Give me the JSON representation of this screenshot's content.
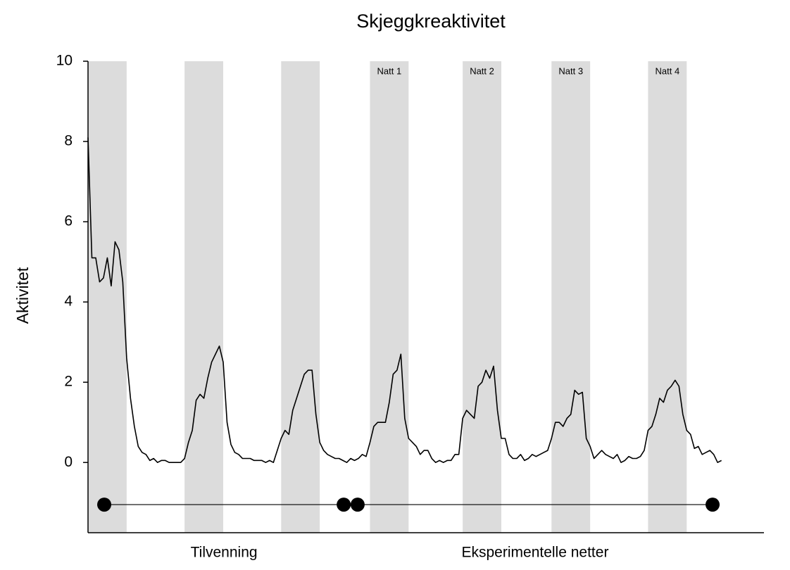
{
  "chart_data": {
    "type": "line",
    "title": "Skjeggkreaktivitet",
    "y_label": "Aktivitet",
    "color": "#000000",
    "band_color": "#dcdcdc",
    "xlim": [
      0,
      175
    ],
    "ylim": [
      -1.75,
      10
    ],
    "yticks": [
      0,
      2,
      4,
      6,
      8,
      10
    ],
    "x": [
      0,
      1,
      2,
      3,
      4,
      5,
      6,
      7,
      8,
      9,
      10,
      11,
      12,
      13,
      14,
      15,
      16,
      17,
      18,
      19,
      20,
      21,
      22,
      23,
      24,
      25,
      26,
      27,
      28,
      29,
      30,
      31,
      32,
      33,
      34,
      35,
      36,
      37,
      38,
      39,
      40,
      41,
      42,
      43,
      44,
      45,
      46,
      47,
      48,
      49,
      50,
      51,
      52,
      53,
      54,
      55,
      56,
      57,
      58,
      59,
      60,
      61,
      62,
      63,
      64,
      65,
      66,
      67,
      68,
      69,
      70,
      71,
      72,
      73,
      74,
      75,
      76,
      77,
      78,
      79,
      80,
      81,
      82,
      83,
      84,
      85,
      86,
      87,
      88,
      89,
      90,
      91,
      92,
      93,
      94,
      95,
      96,
      97,
      98,
      99,
      100,
      101,
      102,
      103,
      104,
      105,
      106,
      107,
      108,
      109,
      110,
      111,
      112,
      113,
      114,
      115,
      116,
      117,
      118,
      119,
      120,
      121,
      122,
      123,
      124,
      125,
      126,
      127,
      128,
      129,
      130,
      131,
      132,
      133,
      134,
      135,
      136,
      137,
      138,
      139,
      140,
      141,
      142,
      143,
      144,
      145,
      146,
      147,
      148,
      149,
      150,
      151,
      152,
      153,
      154,
      155,
      156,
      157,
      158,
      159,
      160,
      161,
      162,
      163,
      164
    ],
    "values": [
      8.1,
      5.1,
      5.1,
      4.5,
      4.6,
      5.1,
      4.4,
      5.5,
      5.3,
      4.5,
      2.6,
      1.6,
      0.9,
      0.4,
      0.25,
      0.2,
      0.05,
      0.1,
      0,
      0.05,
      0.05,
      0,
      0,
      0,
      0,
      0.1,
      0.5,
      0.8,
      1.55,
      1.7,
      1.6,
      2.1,
      2.5,
      2.7,
      2.9,
      2.5,
      1.0,
      0.45,
      0.25,
      0.2,
      0.1,
      0.1,
      0.1,
      0.05,
      0.05,
      0.05,
      0,
      0.05,
      0,
      0.3,
      0.6,
      0.8,
      0.7,
      1.3,
      1.6,
      1.9,
      2.2,
      2.3,
      2.3,
      1.2,
      0.5,
      0.3,
      0.2,
      0.15,
      0.1,
      0.1,
      0.05,
      0,
      0.1,
      0.05,
      0.1,
      0.2,
      0.15,
      0.5,
      0.9,
      1.0,
      1.0,
      1.0,
      1.5,
      2.2,
      2.3,
      2.7,
      1.1,
      0.6,
      0.5,
      0.4,
      0.2,
      0.3,
      0.3,
      0.1,
      0,
      0.05,
      0,
      0.05,
      0.05,
      0.2,
      0.2,
      1.1,
      1.3,
      1.2,
      1.1,
      1.9,
      2.0,
      2.3,
      2.1,
      2.4,
      1.3,
      0.6,
      0.6,
      0.2,
      0.1,
      0.1,
      0.2,
      0.05,
      0.1,
      0.2,
      0.15,
      0.2,
      0.25,
      0.3,
      0.6,
      1.0,
      1.0,
      0.9,
      1.1,
      1.2,
      1.8,
      1.7,
      1.75,
      0.6,
      0.4,
      0.1,
      0.2,
      0.3,
      0.2,
      0.15,
      0.1,
      0.2,
      0,
      0.05,
      0.15,
      0.1,
      0.1,
      0.15,
      0.3,
      0.8,
      0.9,
      1.2,
      1.6,
      1.5,
      1.8,
      1.9,
      2.05,
      1.9,
      1.2,
      0.8,
      0.7,
      0.35,
      0.4,
      0.2,
      0.25,
      0.3,
      0.2,
      0,
      0.05
    ],
    "shaded_bands": [
      [
        0,
        10
      ],
      [
        25,
        35
      ],
      [
        50,
        60
      ],
      [
        73,
        83
      ],
      [
        97,
        107
      ],
      [
        120,
        130
      ],
      [
        145,
        155
      ]
    ],
    "band_labels": [
      null,
      null,
      null,
      "Natt 1",
      "Natt 2",
      "Natt 3",
      "Natt 4"
    ],
    "periods": [
      {
        "label": "Tilvenning",
        "start": 4.2,
        "end": 66.2,
        "y": -1.05
      },
      {
        "label": "Eksperimentelle netter",
        "start": 69.8,
        "end": 161.7,
        "y": -1.05
      }
    ]
  }
}
